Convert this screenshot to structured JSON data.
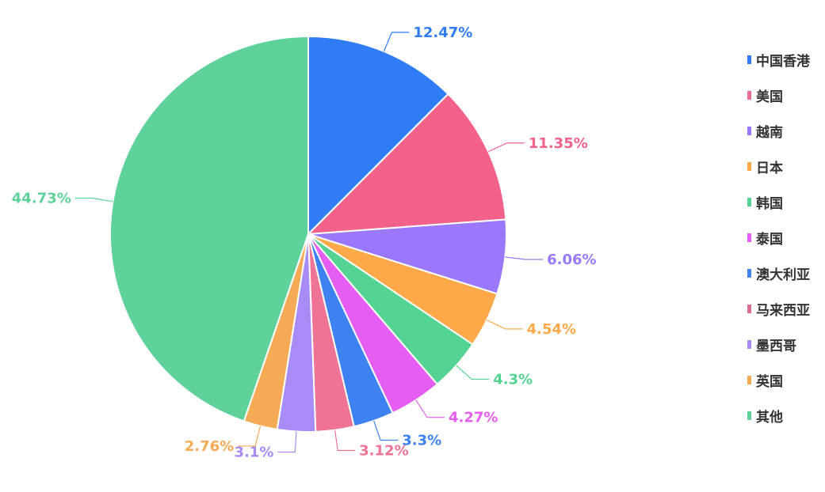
{
  "chart_data": {
    "type": "pie",
    "categories": [
      "中国香港",
      "美国",
      "越南",
      "日本",
      "韩国",
      "泰国",
      "澳大利亚",
      "马来西亚",
      "墨西哥",
      "英国",
      "其他"
    ],
    "values": [
      12.47,
      11.35,
      6.06,
      4.54,
      4.3,
      4.27,
      3.3,
      3.12,
      3.1,
      2.76,
      44.73
    ],
    "labels": [
      "12.47%",
      "11.35%",
      "6.06%",
      "4.54%",
      "4.3%",
      "4.27%",
      "3.3%",
      "3.12%",
      "3.1%",
      "2.76%",
      "44.73%"
    ],
    "colors": [
      "#2f7cf6",
      "#f2618a",
      "#9a78fb",
      "#fda94a",
      "#54d492",
      "#e65df1",
      "#3d82f0",
      "#ee7394",
      "#a78bf6",
      "#f5ab55",
      "#5fd19b"
    ],
    "legend_colors": [
      "#2f7cf6",
      "#e96b92",
      "#9a78fb",
      "#fda94a",
      "#54d492",
      "#e65df1",
      "#3d82f0",
      "#e06e8f",
      "#a78bf6",
      "#f5ab55",
      "#5fd19b"
    ],
    "legend_position": "right"
  }
}
